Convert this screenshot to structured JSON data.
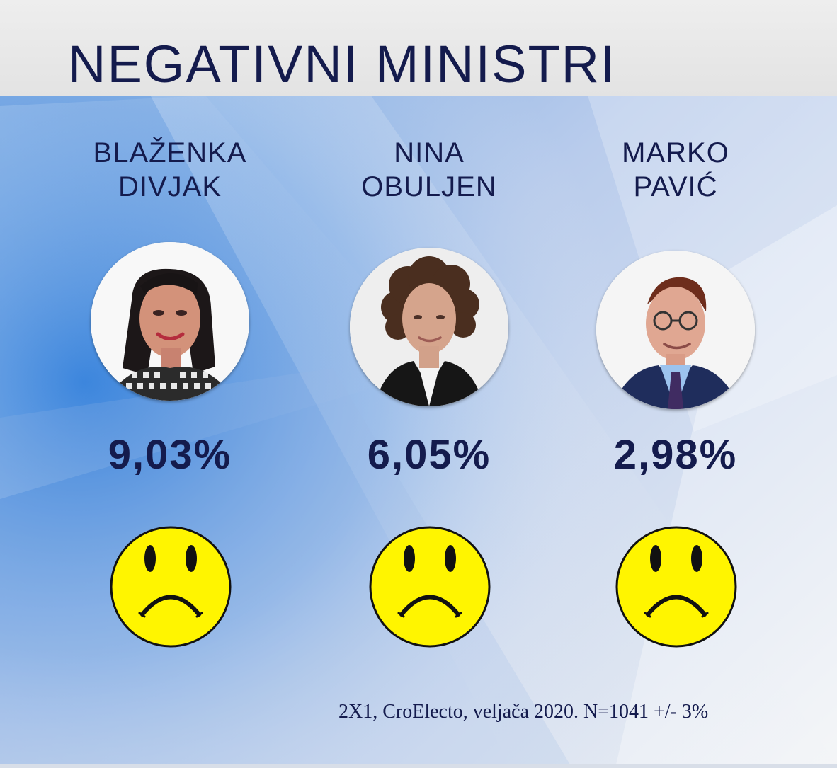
{
  "header": {
    "title": "NEGATIVNI MINISTRI"
  },
  "ministers": [
    {
      "first_name": "BLAŽENKA",
      "last_name": "DIVJAK",
      "percentage": "9,03%"
    },
    {
      "first_name": "NINA",
      "last_name": "OBULJEN",
      "percentage": "6,05%"
    },
    {
      "first_name": "MARKO",
      "last_name": "PAVIĆ",
      "percentage": "2,98%"
    }
  ],
  "footer": {
    "source": "2X1, CroElecto, veljača 2020. N=1041 +/- 3%"
  },
  "icons": {
    "sad_face": "sad-face-icon"
  },
  "colors": {
    "title": "#141b4d",
    "text": "#141b4d",
    "face_fill": "#fff500",
    "background_light": "#e3e3e3",
    "background_blue": "#4f8fdc"
  }
}
